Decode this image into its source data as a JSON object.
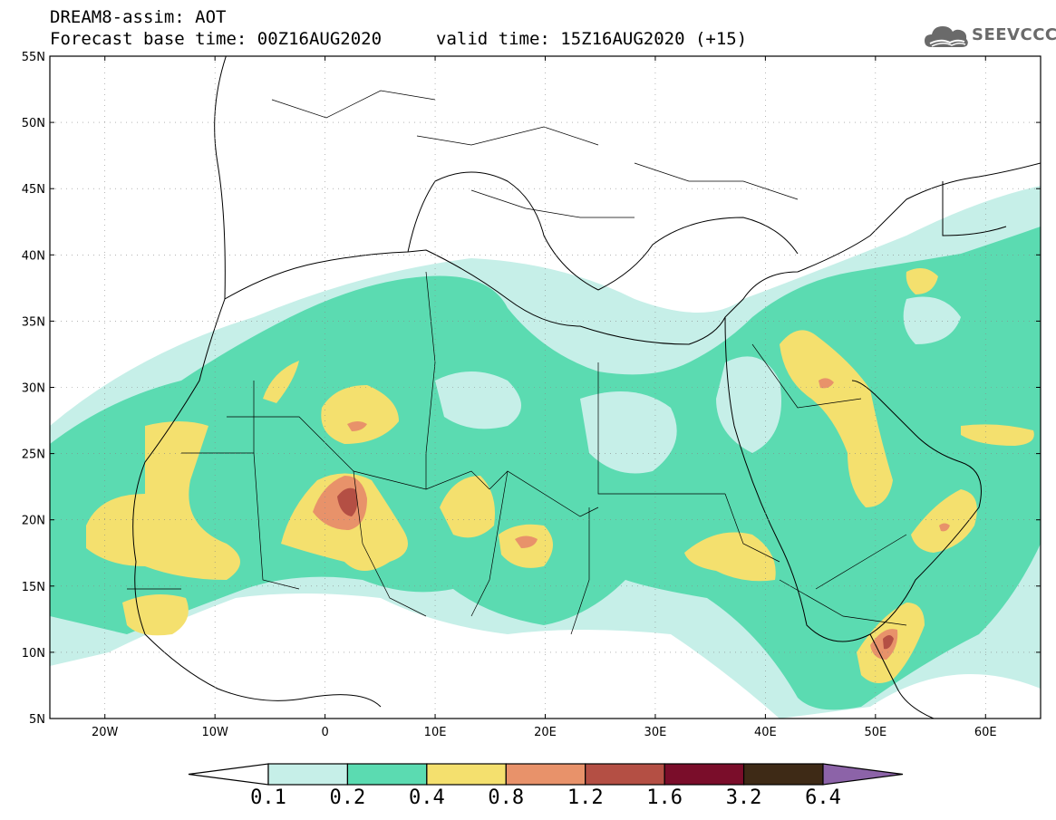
{
  "header": {
    "line1": "DREAM8-assim: AOT",
    "line2": "Forecast base time: 00Z16AUG2020",
    "valid": "valid time: 15Z16AUG2020 (+15)"
  },
  "logo": {
    "text": "SEEVCCC",
    "icon": "cloud-icon",
    "color": "#6a6a6a"
  },
  "map": {
    "extent": {
      "lon_min": -25,
      "lon_max": 65,
      "lat_min": 5,
      "lat_max": 55
    },
    "lat_ticks": [
      {
        "lat": 55,
        "label": "55N"
      },
      {
        "lat": 50,
        "label": "50N"
      },
      {
        "lat": 45,
        "label": "45N"
      },
      {
        "lat": 40,
        "label": "40N"
      },
      {
        "lat": 35,
        "label": "35N"
      },
      {
        "lat": 30,
        "label": "30N"
      },
      {
        "lat": 25,
        "label": "25N"
      },
      {
        "lat": 20,
        "label": "20N"
      },
      {
        "lat": 15,
        "label": "15N"
      },
      {
        "lat": 10,
        "label": "10N"
      },
      {
        "lat": 5,
        "label": "5N"
      }
    ],
    "lon_ticks": [
      {
        "lon": -20,
        "label": "20W"
      },
      {
        "lon": -10,
        "label": "10W"
      },
      {
        "lon": 0,
        "label": "0"
      },
      {
        "lon": 10,
        "label": "10E"
      },
      {
        "lon": 20,
        "label": "20E"
      },
      {
        "lon": 30,
        "label": "30E"
      },
      {
        "lon": 40,
        "label": "40E"
      },
      {
        "lon": 50,
        "label": "50E"
      },
      {
        "lon": 60,
        "label": "60E"
      }
    ]
  },
  "colorbar": {
    "levels": [
      "0.1",
      "0.2",
      "0.4",
      "0.8",
      "1.2",
      "1.6",
      "3.2",
      "6.4"
    ],
    "colors": [
      "#ffffff",
      "#c6efe8",
      "#5bdbb1",
      "#f4e06e",
      "#e8926a",
      "#b44f44",
      "#7a0d2a",
      "#3e2a16",
      "#8c63a8"
    ]
  }
}
